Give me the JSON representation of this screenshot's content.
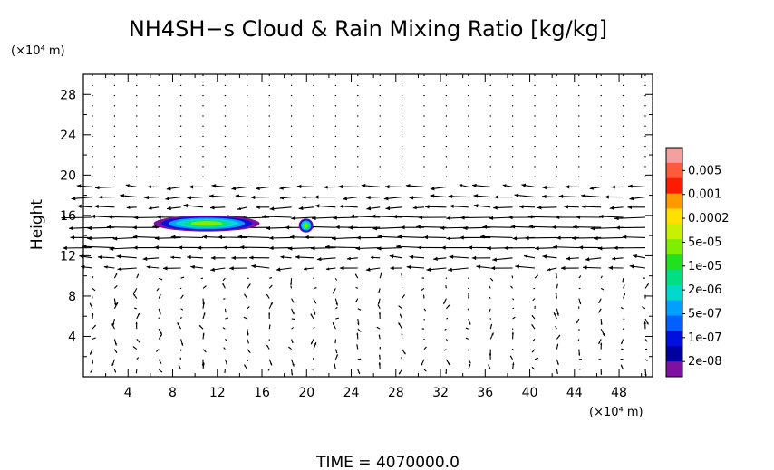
{
  "chart_data": {
    "type": "heatmap",
    "title": "NH4SH−s Cloud & Rain Mixing Ratio [kg/kg]",
    "ylabel": "Height",
    "y_unit": "(×10⁴ m)",
    "x_unit": "(×10⁴ m)",
    "xlim": [
      0,
      51
    ],
    "ylim": [
      0,
      30
    ],
    "x_ticks": [
      4,
      8,
      12,
      16,
      20,
      24,
      28,
      32,
      36,
      40,
      44,
      48
    ],
    "y_ticks": [
      4,
      8,
      12,
      16,
      20,
      24,
      28
    ],
    "x_tick_labels": [
      "4",
      "8",
      "12",
      "16",
      "20",
      "24",
      "28",
      "32",
      "36",
      "40",
      "44",
      "48"
    ],
    "y_tick_labels": [
      "4",
      "8",
      "12",
      "16",
      "20",
      "24",
      "28"
    ],
    "colorbar": {
      "labels": [
        "0.005",
        "0.001",
        "0.0002",
        "5e-05",
        "1e-05",
        "2e-06",
        "5e-07",
        "1e-07",
        "2e-08"
      ],
      "colors": [
        "#f2a0a0",
        "#ff5a3c",
        "#ff1a00",
        "#ff9900",
        "#ffe000",
        "#c8f000",
        "#80ee00",
        "#20e020",
        "#00e080",
        "#00d8d0",
        "#00a0ff",
        "#0060ff",
        "#0010e0",
        "#0000a0",
        "#8010a0"
      ]
    },
    "regions": [
      {
        "name": "main cloud band",
        "x_range": [
          6.3,
          15.8
        ],
        "y_range": [
          14.4,
          16.0
        ],
        "max_level": "1e-05"
      },
      {
        "name": "small cloud",
        "x_range": [
          19.3,
          20.6
        ],
        "y_range": [
          14.3,
          15.7
        ],
        "max_level": "1e-05"
      }
    ],
    "wind_field": "vectors",
    "time_label": "TIME  =  4070000.0"
  }
}
